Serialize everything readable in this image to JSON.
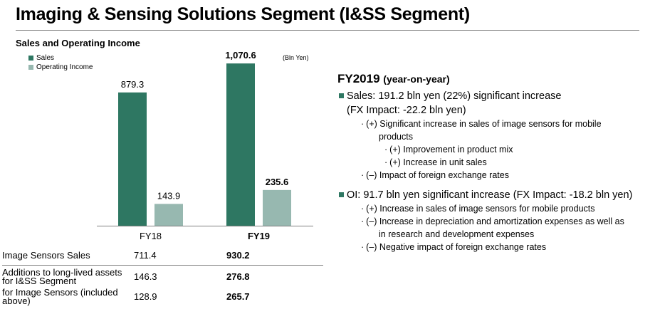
{
  "page": {
    "title": "Imaging & Sensing Solutions Segment (I&SS Segment)"
  },
  "chart_data": {
    "type": "bar",
    "title": "Sales and Operating Income",
    "unit": "(Bln Yen)",
    "categories": [
      "FY18",
      "FY19"
    ],
    "series": [
      {
        "name": "Sales",
        "values": [
          879.3,
          1070.6
        ],
        "labels": [
          "879.3",
          "1,070.6"
        ],
        "color": "#2e7762"
      },
      {
        "name": "Operating Income",
        "values": [
          143.9,
          235.6
        ],
        "labels": [
          "143.9",
          "235.6"
        ],
        "color": "#97b8b0"
      }
    ],
    "ylim": [
      0,
      1400
    ],
    "legend_position": "top-left",
    "grid": false
  },
  "table": {
    "rows": [
      {
        "label": "Image Sensors Sales",
        "fy18": "711.4",
        "fy19": "930.2"
      },
      {
        "label": "Additions to long-lived assets for I&SS Segment",
        "fy18": "146.3",
        "fy19": "276.8"
      },
      {
        "label": "for Image Sensors (included above)",
        "fy18": "128.9",
        "fy19": "265.7"
      }
    ]
  },
  "commentary": {
    "heading": "FY2019",
    "heading_sub": "(year-on-year)",
    "sales": {
      "main": "Sales: 191.2 bln yen (22%) significant increase",
      "fx": "(FX Impact: -22.2 bln yen)",
      "points": [
        {
          "text": "(+) Significant increase in sales of image sensors for mobile",
          "cont": "products",
          "sub": [
            "(+) Improvement in product mix",
            "(+) Increase in unit sales"
          ]
        },
        {
          "text": "(–) Impact of foreign exchange rates"
        }
      ]
    },
    "oi": {
      "main": "OI: 91.7 bln yen significant increase (FX Impact: -18.2 bln yen)",
      "points": [
        {
          "text": "(+) Increase in sales of image sensors for mobile products"
        },
        {
          "text": "(–) Increase in depreciation and amortization expenses as well as",
          "cont": "in research and development expenses"
        },
        {
          "text": "(–) Negative impact of foreign exchange rates"
        }
      ]
    }
  }
}
